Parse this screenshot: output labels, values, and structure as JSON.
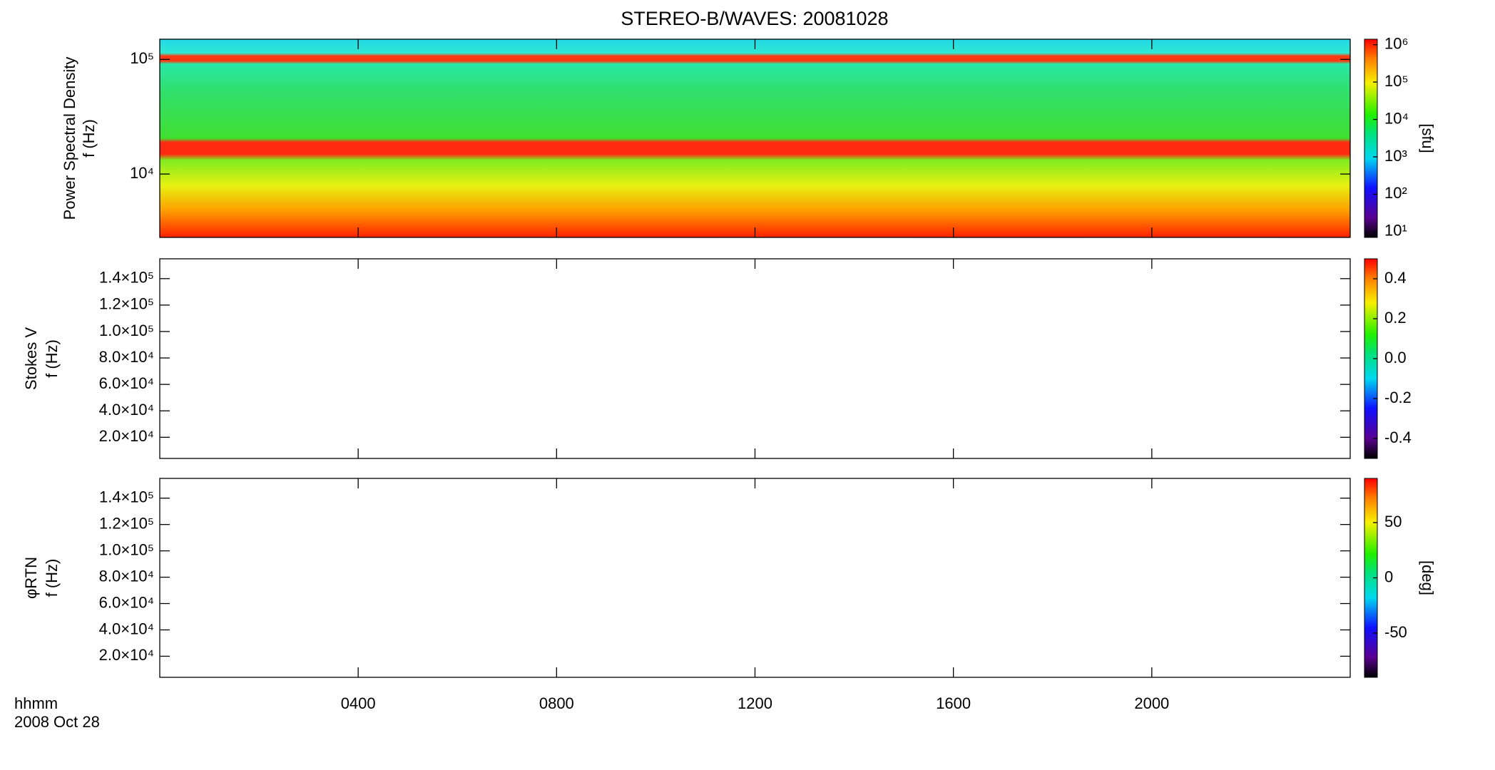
{
  "chart_data": [
    {
      "type": "spectrogram",
      "title": "STEREO-B/WAVES: 20081028",
      "ylabel": [
        "Power Spectral Density",
        "f (Hz)"
      ],
      "yscale": "log",
      "ylim": [
        2800,
        150000
      ],
      "yticks": [
        {
          "value": 10000,
          "label": "10⁴"
        },
        {
          "value": 100000,
          "label": "10⁵"
        }
      ],
      "colorbar": {
        "label": "[sfu]",
        "scale": "log",
        "clim": [
          7,
          1400000
        ],
        "ticks": [
          {
            "value": 10,
            "label": "10¹"
          },
          {
            "value": 100,
            "label": "10²"
          },
          {
            "value": 1000,
            "label": "10³"
          },
          {
            "value": 10000,
            "label": "10⁴"
          },
          {
            "value": 100000,
            "label": "10⁵"
          },
          {
            "value": 1000000,
            "label": "10⁶"
          }
        ]
      }
    },
    {
      "type": "spectrogram",
      "ylabel": [
        "Stokes V",
        "f (Hz)"
      ],
      "yscale": "linear",
      "ylim": [
        4000,
        155000
      ],
      "yticks": [
        {
          "value": 20000,
          "label": "2.0×10⁴"
        },
        {
          "value": 40000,
          "label": "4.0×10⁴"
        },
        {
          "value": 60000,
          "label": "6.0×10⁴"
        },
        {
          "value": 80000,
          "label": "8.0×10⁴"
        },
        {
          "value": 100000,
          "label": "1.0×10⁵"
        },
        {
          "value": 120000,
          "label": "1.2×10⁵"
        },
        {
          "value": 140000,
          "label": "1.4×10⁵"
        }
      ],
      "colorbar": {
        "scale": "linear",
        "clim": [
          -0.5,
          0.5
        ],
        "ticks": [
          {
            "value": -0.4,
            "label": "-0.4"
          },
          {
            "value": -0.2,
            "label": "-0.2"
          },
          {
            "value": 0,
            "label": "0.0"
          },
          {
            "value": 0.2,
            "label": "0.2"
          },
          {
            "value": 0.4,
            "label": "0.4"
          }
        ]
      }
    },
    {
      "type": "spectrogram",
      "ylabel": [
        "φRTN",
        "f (Hz)"
      ],
      "yscale": "linear",
      "ylim": [
        4000,
        155000
      ],
      "yticks": [
        {
          "value": 20000,
          "label": "2.0×10⁴"
        },
        {
          "value": 40000,
          "label": "4.0×10⁴"
        },
        {
          "value": 60000,
          "label": "6.0×10⁴"
        },
        {
          "value": 80000,
          "label": "8.0×10⁴"
        },
        {
          "value": 100000,
          "label": "1.0×10⁵"
        },
        {
          "value": 120000,
          "label": "1.2×10⁵"
        },
        {
          "value": 140000,
          "label": "1.4×10⁵"
        }
      ],
      "colorbar": {
        "label": "[deg]",
        "scale": "linear",
        "clim": [
          -90,
          90
        ],
        "ticks": [
          -50,
          0,
          50
        ]
      },
      "xlabel": [
        "hhmm",
        "2008 Oct 28"
      ],
      "xlim": [
        0,
        24
      ],
      "xticks": [
        {
          "value": 4,
          "label": "0400"
        },
        {
          "value": 8,
          "label": "0800"
        },
        {
          "value": 12,
          "label": "1200"
        },
        {
          "value": 16,
          "label": "1600"
        },
        {
          "value": 20,
          "label": "2000"
        }
      ]
    }
  ]
}
